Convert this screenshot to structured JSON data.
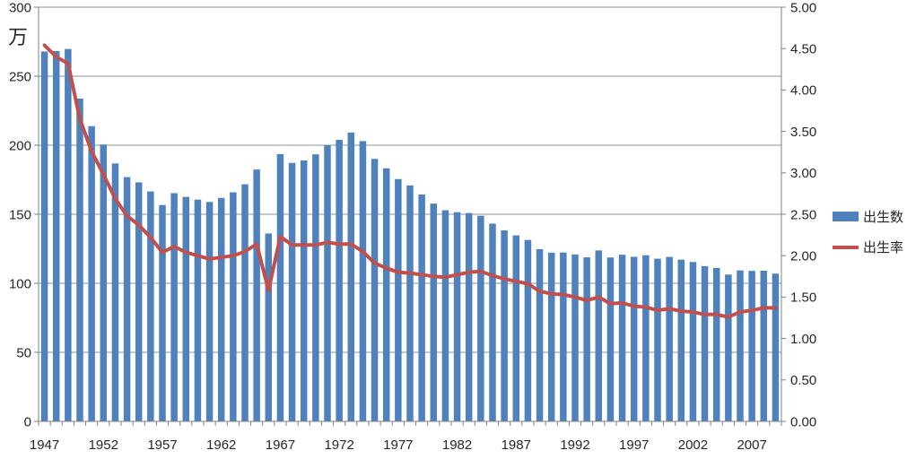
{
  "chart_data": {
    "type": "bar",
    "subtype": "bar+line combo",
    "title": "",
    "grid": true,
    "legend_position": "right-middle",
    "years": [
      1947,
      1948,
      1949,
      1950,
      1951,
      1952,
      1953,
      1954,
      1955,
      1956,
      1957,
      1958,
      1959,
      1960,
      1961,
      1962,
      1963,
      1964,
      1965,
      1966,
      1967,
      1968,
      1969,
      1970,
      1971,
      1972,
      1973,
      1974,
      1975,
      1976,
      1977,
      1978,
      1979,
      1980,
      1981,
      1982,
      1983,
      1984,
      1985,
      1986,
      1987,
      1988,
      1989,
      1990,
      1991,
      1992,
      1993,
      1994,
      1995,
      1996,
      1997,
      1998,
      1999,
      2000,
      2001,
      2002,
      2003,
      2004,
      2005,
      2006,
      2007,
      2008,
      2009
    ],
    "series": [
      {
        "name": "出生数",
        "type": "bar",
        "axis": "left",
        "color": "#4F81BD",
        "values": [
          267.9,
          268.2,
          269.7,
          233.8,
          213.8,
          200.5,
          186.8,
          176.9,
          173.1,
          166.5,
          156.7,
          165.3,
          162.6,
          160.6,
          158.9,
          161.8,
          165.9,
          171.7,
          182.4,
          136.1,
          193.6,
          187.2,
          189.0,
          193.4,
          200.1,
          203.9,
          209.2,
          203.0,
          190.1,
          183.3,
          175.5,
          170.9,
          164.3,
          157.7,
          152.9,
          151.5,
          150.9,
          148.9,
          143.2,
          138.3,
          134.7,
          131.4,
          124.7,
          122.2,
          122.3,
          120.9,
          118.8,
          123.8,
          118.7,
          120.7,
          119.2,
          120.3,
          117.8,
          119.1,
          117.1,
          115.4,
          112.4,
          111.1,
          106.3,
          109.3,
          109.0,
          109.1,
          107.0
        ]
      },
      {
        "name": "出生率",
        "type": "line",
        "axis": "right",
        "color": "#C0504D",
        "values": [
          4.54,
          4.4,
          4.32,
          3.65,
          3.26,
          2.98,
          2.69,
          2.48,
          2.37,
          2.22,
          2.04,
          2.11,
          2.04,
          2.0,
          1.96,
          1.98,
          2.0,
          2.05,
          2.14,
          1.58,
          2.23,
          2.13,
          2.13,
          2.13,
          2.16,
          2.14,
          2.14,
          2.05,
          1.91,
          1.85,
          1.8,
          1.79,
          1.77,
          1.75,
          1.74,
          1.77,
          1.8,
          1.81,
          1.76,
          1.72,
          1.69,
          1.66,
          1.57,
          1.54,
          1.53,
          1.5,
          1.46,
          1.5,
          1.42,
          1.43,
          1.39,
          1.38,
          1.34,
          1.36,
          1.33,
          1.32,
          1.29,
          1.29,
          1.26,
          1.32,
          1.34,
          1.37,
          1.37
        ]
      }
    ],
    "left_axis": {
      "unit": "万",
      "min": 0,
      "max": 300,
      "step": 50,
      "tick_labels": [
        "0",
        "50",
        "100",
        "150",
        "200",
        "250",
        "300"
      ]
    },
    "right_axis": {
      "min": 0,
      "max": 5,
      "step": 0.5,
      "tick_labels": [
        "0.00",
        "0.50",
        "1.00",
        "1.50",
        "2.00",
        "2.50",
        "3.00",
        "3.50",
        "4.00",
        "4.50",
        "5.00"
      ]
    },
    "x_axis": {
      "first_year": 1947,
      "label_every": 5,
      "tick_labels": [
        "1947",
        "1952",
        "1957",
        "1962",
        "1967",
        "1972",
        "1977",
        "1982",
        "1987",
        "1992",
        "1997",
        "2002",
        "2007"
      ]
    },
    "colors": {
      "bar": "#4F81BD",
      "line": "#C0504D",
      "gridline": "#909090",
      "axis": "#808080",
      "text": "#262626",
      "background": "#ffffff"
    }
  }
}
